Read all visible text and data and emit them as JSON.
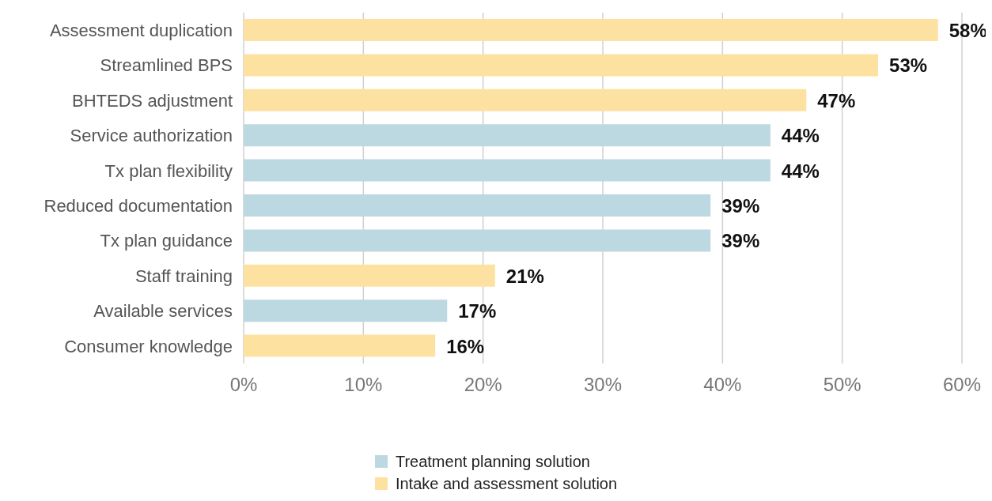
{
  "chart_data": {
    "type": "bar",
    "orientation": "horizontal",
    "stacked": true,
    "categories": [
      "Assessment duplication",
      "Streamlined BPS",
      "BHTEDS adjustment",
      "Service authorization",
      "Tx plan flexibility",
      "Reduced documentation",
      "Tx plan guidance",
      "Staff training",
      "Available services",
      "Consumer knowledge"
    ],
    "series": [
      {
        "name": "Treatment planning solution",
        "color": "#bcd8e0",
        "values": [
          null,
          null,
          null,
          44,
          44,
          39,
          39,
          null,
          17,
          null
        ],
        "value_labels": [
          null,
          null,
          null,
          "44%",
          "44%",
          "39%",
          "39%",
          null,
          "17%",
          null
        ]
      },
      {
        "name": "Intake and assessment solution",
        "color": "#fde1a0",
        "values": [
          58,
          53,
          47,
          null,
          null,
          null,
          null,
          21,
          null,
          16
        ],
        "value_labels": [
          "58%",
          "53%",
          "47%",
          null,
          null,
          null,
          null,
          "21%",
          null,
          "16%"
        ]
      }
    ],
    "xlim": [
      0,
      60
    ],
    "xticks": [
      {
        "value": 0,
        "label": "0%"
      },
      {
        "value": 10,
        "label": "10%"
      },
      {
        "value": 20,
        "label": "20%"
      },
      {
        "value": 30,
        "label": "30%"
      },
      {
        "value": 40,
        "label": "40%"
      },
      {
        "value": 50,
        "label": "50%"
      },
      {
        "value": 60,
        "label": "60%"
      }
    ],
    "grid": "x",
    "legend": "bottom"
  }
}
